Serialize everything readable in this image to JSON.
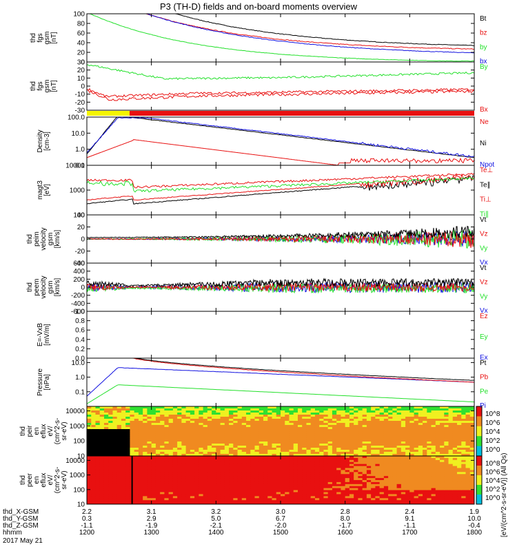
{
  "title": "P3 (TH-D) fields and on-board moments overview",
  "colors": {
    "black": "#000000",
    "red": "#e81010",
    "green": "#22e02a",
    "blue": "#1010e0",
    "yellow": "#f4f400"
  },
  "chart_data": [
    {
      "type": "line",
      "id": "fgs_mag",
      "ylabel": [
        "thd",
        "fgs",
        "gsm",
        "[nT]"
      ],
      "ylim": [
        0,
        100
      ],
      "yticks": [
        "100",
        "80",
        "60",
        "40",
        "20",
        "0"
      ],
      "series": [
        {
          "name": "Bt",
          "color": "#000000"
        },
        {
          "name": "bz",
          "color": "#e81010"
        },
        {
          "name": "by",
          "color": "#22e02a"
        },
        {
          "name": "bx",
          "color": "#1010e0"
        }
      ]
    },
    {
      "type": "line",
      "id": "fgs_comp",
      "ylabel": [
        "thd",
        "fgs",
        "gsm",
        "[nT]"
      ],
      "ylim": [
        -30,
        30
      ],
      "yticks": [
        "30",
        "20",
        "10",
        "0",
        "-10",
        "-20",
        "-30"
      ],
      "series": [
        {
          "name": "By",
          "color": "#22e02a"
        },
        {
          "name": "Bx",
          "color": "#e81010"
        }
      ]
    },
    {
      "type": "line",
      "id": "density",
      "ylabel": [
        "Density",
        "[cm-3]"
      ],
      "scale": "log",
      "ylim": [
        0.1,
        100
      ],
      "yticks": [
        "100.0",
        "10.0",
        "1.0",
        "0.1"
      ],
      "series": [
        {
          "name": "Ne",
          "color": "#e81010"
        },
        {
          "name": "Ni",
          "color": "#000000"
        },
        {
          "name": "Npot",
          "color": "#1010e0"
        }
      ]
    },
    {
      "type": "line",
      "id": "temperature",
      "ylabel": [
        "magt3",
        "[eV]"
      ],
      "scale": "log",
      "ylim": [
        100,
        10000
      ],
      "yticks": [
        "10000",
        "1000",
        "100"
      ],
      "series": [
        {
          "name": "Te⊥",
          "color": "#e81010"
        },
        {
          "name": "Te∥",
          "color": "#000000"
        },
        {
          "name": "Ti⊥",
          "color": "#e81010"
        },
        {
          "name": "Ti∥",
          "color": "#22e02a"
        }
      ]
    },
    {
      "type": "line",
      "id": "peim_vel",
      "ylabel": [
        "thd",
        "peim",
        "velocity",
        "gsm",
        "[km/s]"
      ],
      "ylim": [
        -40,
        40
      ],
      "yticks": [
        "40",
        "20",
        "0",
        "-20",
        "-40"
      ],
      "series": [
        {
          "name": "Vt",
          "color": "#000000"
        },
        {
          "name": "Vz",
          "color": "#e81010"
        },
        {
          "name": "Vy",
          "color": "#22e02a"
        },
        {
          "name": "Vx",
          "color": "#1010e0"
        }
      ]
    },
    {
      "type": "line",
      "id": "peem_vel",
      "ylabel": [
        "thd",
        "peem",
        "velocity",
        "gsm",
        "[km/s]"
      ],
      "ylim": [
        -600,
        600
      ],
      "yticks": [
        "600",
        "400",
        "200",
        "0",
        "-200",
        "-400",
        "-600"
      ],
      "series": [
        {
          "name": "Vt",
          "color": "#000000"
        },
        {
          "name": "Vz",
          "color": "#e81010"
        },
        {
          "name": "Vy",
          "color": "#22e02a"
        },
        {
          "name": "Vx",
          "color": "#1010e0"
        }
      ]
    },
    {
      "type": "line",
      "id": "efield",
      "ylabel": [
        "E=-VxB",
        "[mV/m]"
      ],
      "ylim": [
        0,
        1
      ],
      "yticks": [
        "1.0",
        "0.8",
        "0.6",
        "0.4",
        "0.2",
        "0.0"
      ],
      "series": [
        {
          "name": "Ez",
          "color": "#e81010"
        },
        {
          "name": "Ey",
          "color": "#22e02a"
        },
        {
          "name": "Ex",
          "color": "#1010e0"
        }
      ]
    },
    {
      "type": "line",
      "id": "pressure",
      "ylabel": [
        "Pressure",
        "[nPa]"
      ],
      "scale": "log",
      "ylim": [
        0.01,
        20
      ],
      "yticks": [
        "10.0",
        "1.0",
        "0.1"
      ],
      "series": [
        {
          "name": "Pt",
          "color": "#000000"
        },
        {
          "name": "Pb",
          "color": "#e81010"
        },
        {
          "name": "Pe",
          "color": "#22e02a"
        },
        {
          "name": "Pi",
          "color": "#1010e0"
        }
      ]
    },
    {
      "type": "heatmap",
      "id": "peir_spec",
      "ylabel": [
        "thd",
        "peir",
        "en",
        "eflux",
        "eV/",
        "(cm^2-s-",
        "sr-eV)"
      ],
      "scale": "log",
      "ylim": [
        10,
        20000
      ],
      "yticks": [
        "10000",
        "1000",
        "100",
        "10"
      ],
      "colorbar": {
        "ticks": [
          "10^8",
          "10^6",
          "10^4",
          "10^2",
          "10^0"
        ]
      }
    },
    {
      "type": "heatmap",
      "id": "peer_spec",
      "ylabel": [
        "thd",
        "peer",
        "en",
        "eflux",
        "eV/",
        "(cm^2-s-",
        "sr-eV)"
      ],
      "scale": "log",
      "ylim": [
        10,
        20000
      ],
      "yticks": [
        "10000",
        "1000",
        "100",
        "10"
      ],
      "colorbar": {
        "ticks": [
          "10^8",
          "10^6",
          "10^4",
          "10^2",
          "10^0"
        ]
      }
    }
  ],
  "colorbar_label": "[eV/(cm^2-s-sr-eV)] (All Qs)",
  "x_axis": {
    "hhmm": [
      "1200",
      "1300",
      "1400",
      "1500",
      "1600",
      "1700",
      "1800"
    ],
    "rows": [
      {
        "label": "thd_X-GSM",
        "values": [
          "2.2",
          "3.1",
          "3.2",
          "3.0",
          "2.8",
          "2.4",
          "1.9"
        ]
      },
      {
        "label": "thd_Y-GSM",
        "values": [
          "0.3",
          "2.9",
          "5.0",
          "6.7",
          "8.0",
          "9.1",
          "10.0"
        ]
      },
      {
        "label": "thd_Z-GSM",
        "values": [
          "-1.1",
          "-1.9",
          "-2.1",
          "-2.0",
          "-1.7",
          "-1.1",
          "-0.4"
        ]
      },
      {
        "label": "hhmm",
        "values": [
          "1200",
          "1300",
          "1400",
          "1500",
          "1600",
          "1700",
          "1800"
        ]
      }
    ],
    "date": "2017 May 21"
  }
}
